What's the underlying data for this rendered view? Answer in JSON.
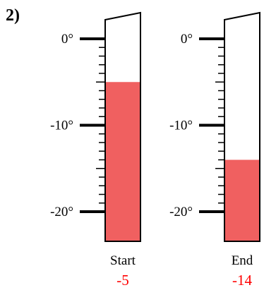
{
  "problem_number": "2)",
  "scale": {
    "max": 0,
    "min": -20,
    "labels": [
      {
        "value": 0,
        "text": "0°"
      },
      {
        "value": -10,
        "text": "-10°"
      },
      {
        "value": -20,
        "text": "-20°"
      }
    ]
  },
  "colors": {
    "fill": "#f06060",
    "value_text": "#ff0000",
    "outline": "#000000"
  },
  "thermometers": [
    {
      "name": "Start",
      "value": -5,
      "value_text": "-5"
    },
    {
      "name": "End",
      "value": -14,
      "value_text": "-14"
    }
  ]
}
